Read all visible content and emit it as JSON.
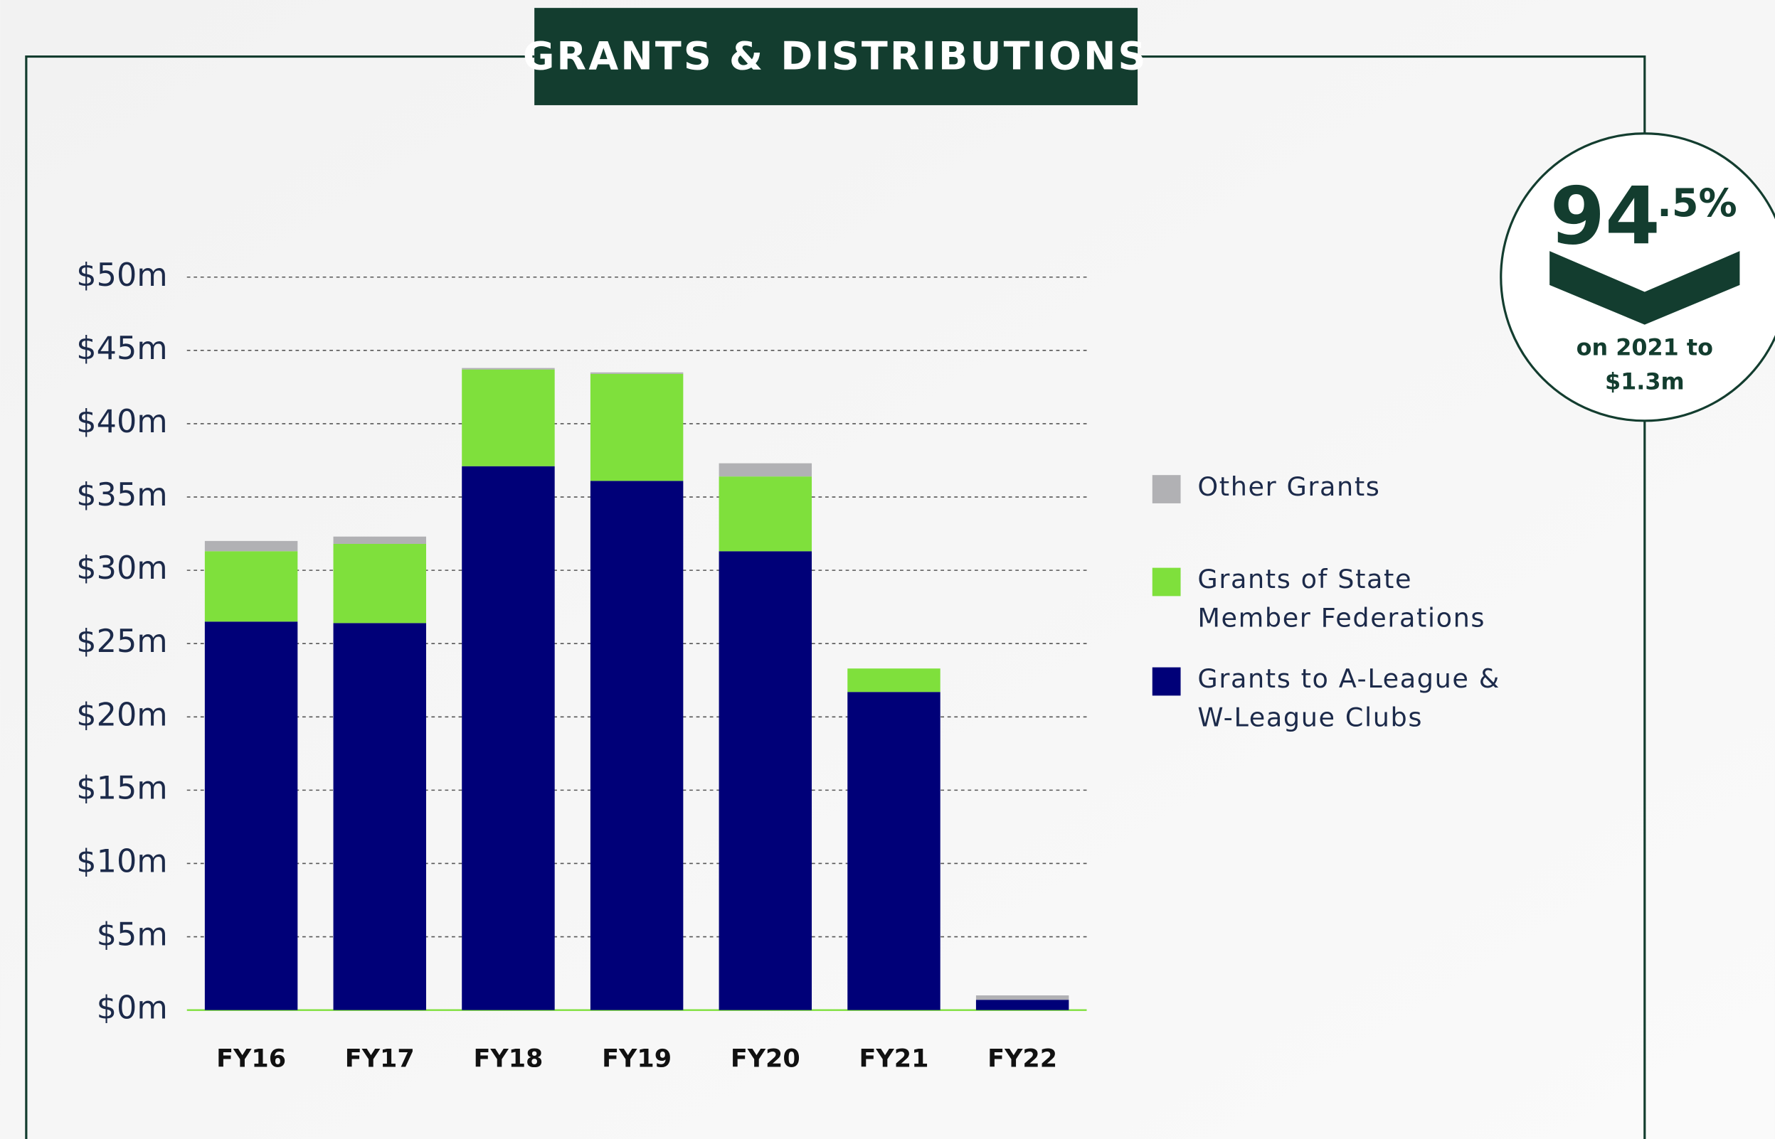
{
  "title": "GRANTS & DISTRIBUTIONS",
  "chart_data": {
    "type": "stacked-bar",
    "categories": [
      "FY16",
      "FY17",
      "FY18",
      "FY19",
      "FY20",
      "FY21",
      "FY22"
    ],
    "series": [
      {
        "name": "Grants to A-League & W-League Clubs",
        "color": "#000078",
        "values": [
          26.5,
          26.4,
          37.1,
          36.1,
          31.3,
          21.7,
          0.7
        ]
      },
      {
        "name": "Grants of State Member Federations",
        "color": "#7fe03c",
        "values": [
          4.8,
          5.4,
          6.6,
          7.3,
          5.1,
          1.6,
          0
        ]
      },
      {
        "name": "Other Grants",
        "color": "#b1b1b4",
        "values": [
          0.7,
          0.5,
          0.1,
          0.1,
          0.9,
          0,
          0.3
        ]
      }
    ],
    "ylim": [
      0,
      50
    ],
    "yticks": [
      {
        "value": 0,
        "label": "$0m"
      },
      {
        "value": 5,
        "label": "$5m"
      },
      {
        "value": 10,
        "label": "$10m"
      },
      {
        "value": 15,
        "label": "$15m"
      },
      {
        "value": 20,
        "label": "$20m"
      },
      {
        "value": 25,
        "label": "$25m"
      },
      {
        "value": 30,
        "label": "$30m"
      },
      {
        "value": 35,
        "label": "$35m"
      },
      {
        "value": 40,
        "label": "$40m"
      },
      {
        "value": 45,
        "label": "$45m"
      },
      {
        "value": 50,
        "label": "$50m"
      }
    ],
    "grid": true
  },
  "badge": {
    "number": "94",
    "fraction": ".5%",
    "caption": "on 2021 to $1.3m"
  }
}
